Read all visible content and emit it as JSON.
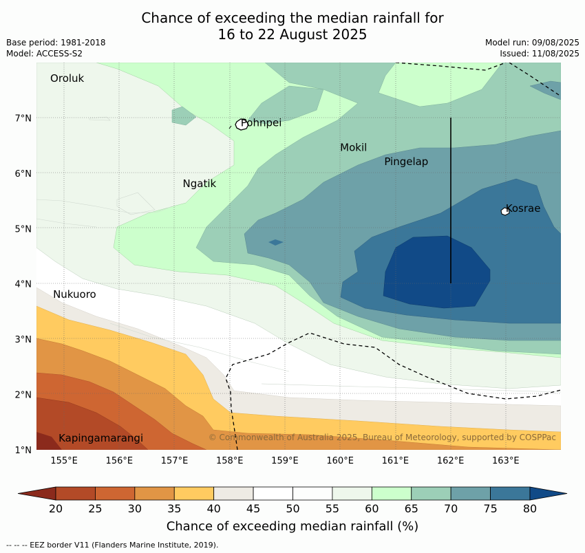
{
  "header": {
    "title_line1": "Chance of exceeding the median rainfall for",
    "title_line2": "16 to 22 August 2025",
    "base_period": "Base period: 1981-2018",
    "model": "Model: ACCESS-S2",
    "model_run": "Model run: 09/08/2025",
    "issued": "Issued: 11/08/2025"
  },
  "map": {
    "lon_ticks": [
      "155°E",
      "156°E",
      "157°E",
      "158°E",
      "159°E",
      "160°E",
      "161°E",
      "162°E",
      "163°E"
    ],
    "lat_ticks": [
      "7°N",
      "6°N",
      "5°N",
      "4°N",
      "3°N",
      "2°N",
      "1°N"
    ],
    "places": [
      {
        "name": "Oroluk",
        "lon": 154.75,
        "lat": 7.65
      },
      {
        "name": "Pohnpei",
        "lon": 158.2,
        "lat": 6.85
      },
      {
        "name": "Mokil",
        "lon": 160.0,
        "lat": 6.4
      },
      {
        "name": "Pingelap",
        "lon": 160.8,
        "lat": 6.15
      },
      {
        "name": "Ngatik",
        "lon": 157.15,
        "lat": 5.75
      },
      {
        "name": "Kosrae",
        "lon": 163.0,
        "lat": 5.3
      },
      {
        "name": "Nukuoro",
        "lon": 154.8,
        "lat": 3.75
      },
      {
        "name": "Kapingamarangi",
        "lon": 154.9,
        "lat": 1.15
      }
    ],
    "copyright": "© Commonwealth of Australia 2025, Bureau of Meteorology, supported by COSPPac"
  },
  "colorbar": {
    "ticks": [
      "20",
      "25",
      "30",
      "35",
      "40",
      "45",
      "50",
      "55",
      "60",
      "65",
      "70",
      "75",
      "80"
    ],
    "colors": [
      "#8b2a1c",
      "#b34a27",
      "#ce6632",
      "#e19545",
      "#ffcb60",
      "#eeebe4",
      "#ffffff",
      "#fdfefd",
      "#eef7ec",
      "#ccffcc",
      "#9ccfb7",
      "#6ea1a8",
      "#3b7799",
      "#114a87"
    ],
    "title": "Chance of exceeding median rainfall (%)"
  },
  "footer": {
    "legend_line": "--  --  -- EEZ border V11 (Flanders Marine Institute, 2019)."
  }
}
